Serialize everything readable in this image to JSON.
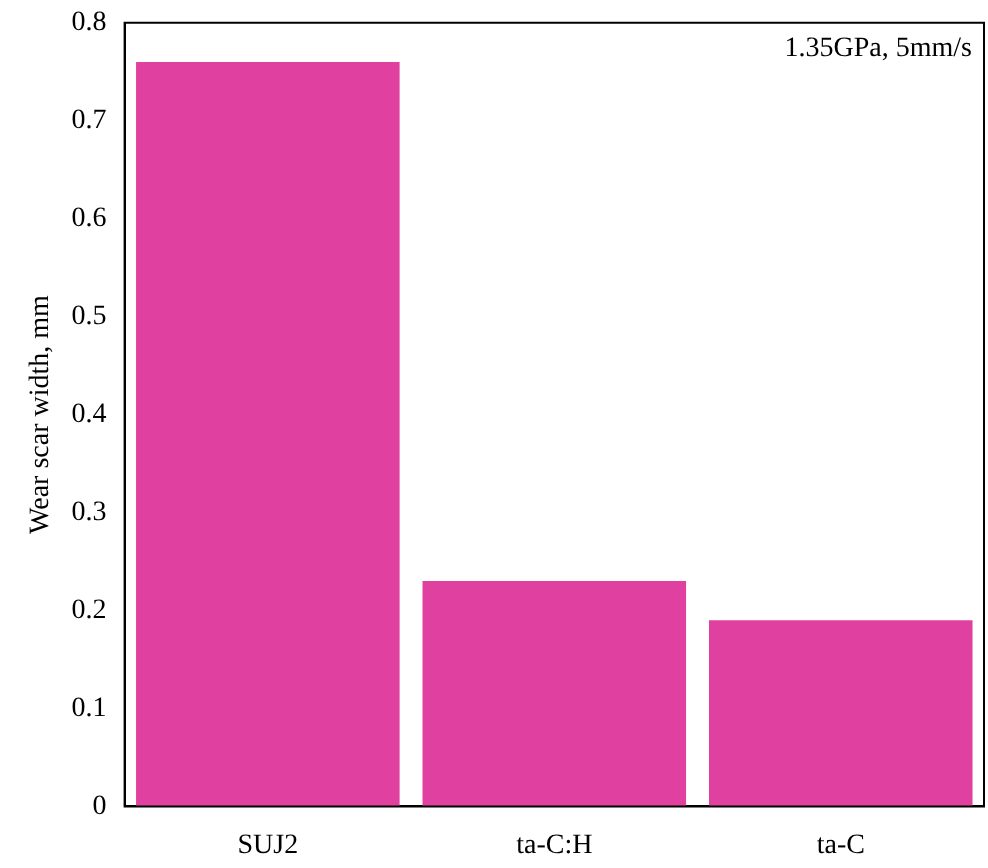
{
  "chart_data": {
    "type": "bar",
    "ylabel": "Wear scar width, mm",
    "categories": [
      "SUJ2",
      "ta-C:H",
      "ta-C"
    ],
    "values": [
      0.76,
      0.23,
      0.19
    ],
    "color": "#e0409f",
    "ylim": [
      0,
      0.8
    ],
    "yticks": [
      0,
      0.1,
      0.2,
      0.3,
      0.4,
      0.5,
      0.6,
      0.7,
      0.8
    ],
    "grid": false,
    "legend": false,
    "annotations": [
      "1.35GPa, 5mm/s"
    ]
  }
}
